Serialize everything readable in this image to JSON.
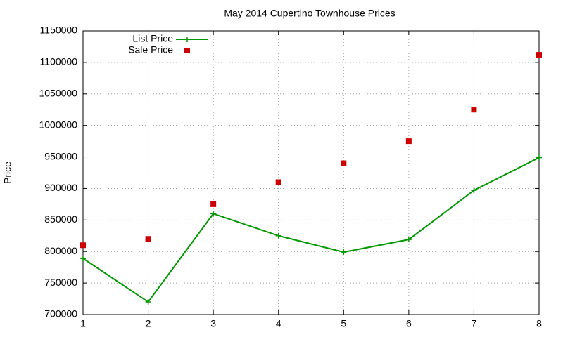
{
  "chart_data": {
    "type": "line",
    "title": "May 2014 Cupertino Townhouse Prices",
    "y_label": "Price",
    "x": [
      1,
      2,
      3,
      4,
      5,
      6,
      7,
      8
    ],
    "series": [
      {
        "name": "List Price",
        "color": "#009900",
        "style": "linespoints",
        "marker": "plus",
        "values": [
          789000,
          720000,
          860000,
          825000,
          799000,
          819000,
          897000,
          949000
        ]
      },
      {
        "name": "Sale Price",
        "color": "#cc0000",
        "style": "points",
        "marker": "square",
        "values": [
          810000,
          820000,
          875000,
          910000,
          940000,
          975000,
          1025000,
          1112000
        ]
      }
    ],
    "xlim": [
      1,
      8
    ],
    "xticks": [
      1,
      2,
      3,
      4,
      5,
      6,
      7,
      8
    ],
    "ylim": [
      700000,
      1150000
    ],
    "yticks": [
      700000,
      750000,
      800000,
      850000,
      900000,
      950000,
      1000000,
      1050000,
      1100000,
      1150000
    ],
    "grid": true,
    "legend": "top-left"
  }
}
